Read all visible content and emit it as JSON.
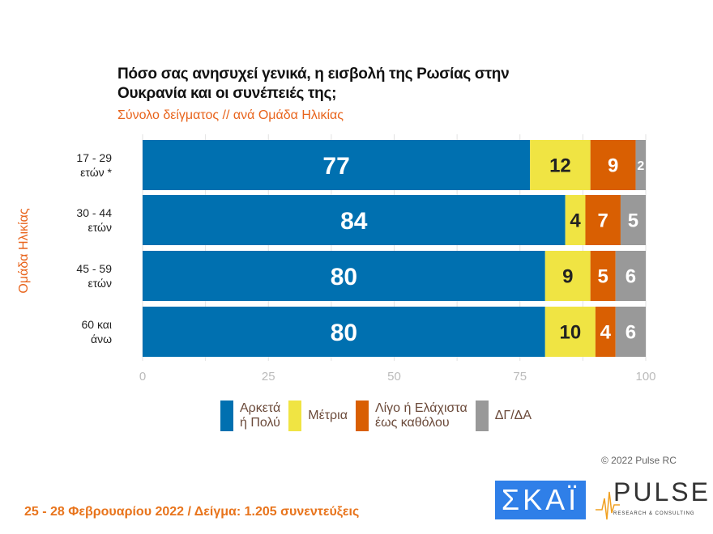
{
  "chart_data": {
    "type": "bar",
    "orientation": "horizontal",
    "stacked": true,
    "title": "Πόσο σας ανησυχεί γενικά, η εισβολή της Ρωσίας στην Ουκρανία και οι συνέπειές της;",
    "title_lines": [
      "Πόσο σας ανησυχεί γενικά, η εισβολή της Ρωσίας στην",
      "Ουκρανία και οι συνέπειές της;"
    ],
    "subtitle": "Σύνολο δείγματος // ανά Ομάδα Ηλικίας",
    "ylabel": "Ομάδα Ηλικίας",
    "xlim": [
      0,
      100
    ],
    "xticks": [
      "0",
      "25",
      "50",
      "75",
      "100"
    ],
    "grid": true,
    "legend_position": "bottom",
    "categories": [
      [
        "17 - 29",
        "ετών *"
      ],
      [
        "30 - 44",
        "ετών"
      ],
      [
        "45 - 59",
        "ετών"
      ],
      [
        "60 και",
        "άνω"
      ]
    ],
    "series": [
      {
        "name": [
          "Αρκετά",
          "ή Πολύ"
        ],
        "color": "#0070b0",
        "label_color": "#ffffff",
        "values": [
          77,
          84,
          80,
          80
        ]
      },
      {
        "name": [
          "Μέτρια"
        ],
        "color": "#f0e443",
        "label_color": "#222222",
        "values": [
          12,
          4,
          9,
          10
        ]
      },
      {
        "name": [
          "Λίγο ή Ελάχιστα",
          "έως καθόλου"
        ],
        "color": "#d95f02",
        "label_color": "#ffffff",
        "values": [
          9,
          7,
          5,
          4
        ]
      },
      {
        "name": [
          "ΔΓ/ΔΑ"
        ],
        "color": "#999999",
        "label_color": "#ffffff",
        "values": [
          2,
          5,
          6,
          6
        ]
      }
    ]
  },
  "copyright": "© 2022 Pulse RC",
  "footer": "25 - 28 Φεβρουαρίου  2022  /  Δείγμα:  1.205 συνεντεύξεις",
  "logos": {
    "skai": "ΣΚΑΪ",
    "pulse": "PULSE",
    "pulse_sub": "RESEARCH & CONSULTING"
  }
}
